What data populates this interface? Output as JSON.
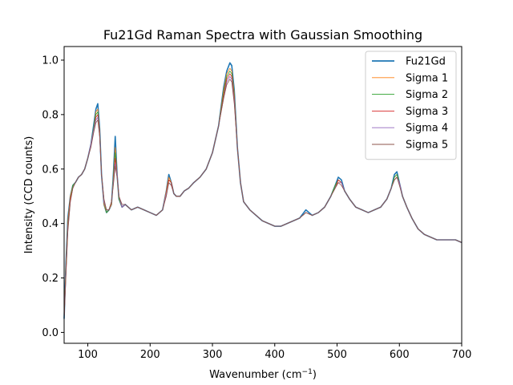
{
  "chart_data": {
    "type": "line",
    "title": "Fu21Gd Raman Spectra with Gaussian Smoothing",
    "xlabel": "Wavenumber (cm",
    "xlabel_sup": "−1",
    "xlabel_end": ")",
    "ylabel": "Intensity (CCD counts)",
    "xlim": [
      62,
      700
    ],
    "ylim": [
      -0.04,
      1.05
    ],
    "xticks": [
      100,
      200,
      300,
      400,
      500,
      600,
      700
    ],
    "xtick_labels": [
      "100",
      "200",
      "300",
      "400",
      "500",
      "600",
      "700"
    ],
    "yticks": [
      0.0,
      0.2,
      0.4,
      0.6,
      0.8,
      1.0
    ],
    "ytick_labels": [
      "0.0",
      "0.2",
      "0.4",
      "0.6",
      "0.8",
      "1.0"
    ],
    "grid": false,
    "legend_position": "top-right",
    "x": [
      62,
      65,
      68,
      72,
      76,
      80,
      85,
      90,
      95,
      100,
      105,
      110,
      113,
      116,
      119,
      122,
      126,
      130,
      134,
      138,
      141,
      144,
      147,
      150,
      155,
      160,
      170,
      180,
      190,
      200,
      210,
      220,
      226,
      230,
      234,
      238,
      242,
      248,
      255,
      262,
      270,
      280,
      290,
      300,
      310,
      318,
      323,
      328,
      331,
      335,
      340,
      345,
      350,
      360,
      370,
      380,
      390,
      400,
      410,
      420,
      430,
      440,
      450,
      460,
      470,
      480,
      490,
      497,
      502,
      507,
      512,
      520,
      530,
      540,
      550,
      560,
      570,
      580,
      587,
      592,
      596,
      600,
      605,
      612,
      620,
      630,
      640,
      650,
      660,
      670,
      680,
      690,
      700
    ],
    "series": [
      {
        "name": "Fu21Gd",
        "color": "#1f77b4",
        "values": [
          0.05,
          0.26,
          0.42,
          0.5,
          0.54,
          0.55,
          0.57,
          0.58,
          0.6,
          0.64,
          0.69,
          0.77,
          0.82,
          0.84,
          0.75,
          0.58,
          0.47,
          0.44,
          0.45,
          0.47,
          0.58,
          0.72,
          0.58,
          0.49,
          0.46,
          0.47,
          0.45,
          0.46,
          0.45,
          0.44,
          0.43,
          0.45,
          0.52,
          0.58,
          0.55,
          0.51,
          0.5,
          0.5,
          0.52,
          0.53,
          0.55,
          0.57,
          0.6,
          0.66,
          0.76,
          0.9,
          0.96,
          0.99,
          0.98,
          0.89,
          0.68,
          0.55,
          0.48,
          0.45,
          0.43,
          0.41,
          0.4,
          0.39,
          0.39,
          0.4,
          0.41,
          0.42,
          0.45,
          0.43,
          0.44,
          0.46,
          0.5,
          0.54,
          0.57,
          0.56,
          0.52,
          0.49,
          0.46,
          0.45,
          0.44,
          0.45,
          0.46,
          0.49,
          0.53,
          0.58,
          0.59,
          0.55,
          0.5,
          0.46,
          0.42,
          0.38,
          0.36,
          0.35,
          0.34,
          0.34,
          0.34,
          0.34,
          0.33
        ]
      },
      {
        "name": "Sigma 1",
        "color": "#ff7f0e",
        "values": [
          0.05,
          0.25,
          0.41,
          0.5,
          0.54,
          0.55,
          0.57,
          0.58,
          0.6,
          0.64,
          0.69,
          0.76,
          0.81,
          0.82,
          0.74,
          0.58,
          0.47,
          0.44,
          0.45,
          0.47,
          0.57,
          0.68,
          0.58,
          0.49,
          0.46,
          0.47,
          0.45,
          0.46,
          0.45,
          0.44,
          0.43,
          0.45,
          0.52,
          0.57,
          0.55,
          0.51,
          0.5,
          0.5,
          0.52,
          0.53,
          0.55,
          0.57,
          0.6,
          0.66,
          0.76,
          0.89,
          0.95,
          0.97,
          0.96,
          0.88,
          0.68,
          0.55,
          0.48,
          0.45,
          0.43,
          0.41,
          0.4,
          0.39,
          0.39,
          0.4,
          0.41,
          0.42,
          0.44,
          0.43,
          0.44,
          0.46,
          0.5,
          0.54,
          0.56,
          0.55,
          0.52,
          0.49,
          0.46,
          0.45,
          0.44,
          0.45,
          0.46,
          0.49,
          0.53,
          0.57,
          0.58,
          0.55,
          0.5,
          0.46,
          0.42,
          0.38,
          0.36,
          0.35,
          0.34,
          0.34,
          0.34,
          0.34,
          0.33
        ]
      },
      {
        "name": "Sigma 2",
        "color": "#2ca02c",
        "values": [
          0.05,
          0.24,
          0.4,
          0.49,
          0.54,
          0.55,
          0.57,
          0.58,
          0.6,
          0.64,
          0.69,
          0.76,
          0.8,
          0.81,
          0.73,
          0.58,
          0.48,
          0.44,
          0.45,
          0.48,
          0.56,
          0.66,
          0.58,
          0.49,
          0.46,
          0.47,
          0.45,
          0.46,
          0.45,
          0.44,
          0.43,
          0.45,
          0.51,
          0.56,
          0.55,
          0.51,
          0.5,
          0.5,
          0.52,
          0.53,
          0.55,
          0.57,
          0.6,
          0.66,
          0.76,
          0.88,
          0.94,
          0.96,
          0.95,
          0.87,
          0.68,
          0.55,
          0.48,
          0.45,
          0.43,
          0.41,
          0.4,
          0.39,
          0.39,
          0.4,
          0.41,
          0.42,
          0.44,
          0.43,
          0.44,
          0.46,
          0.5,
          0.54,
          0.56,
          0.55,
          0.52,
          0.49,
          0.46,
          0.45,
          0.44,
          0.45,
          0.46,
          0.49,
          0.53,
          0.57,
          0.58,
          0.55,
          0.5,
          0.46,
          0.42,
          0.38,
          0.36,
          0.35,
          0.34,
          0.34,
          0.34,
          0.34,
          0.33
        ]
      },
      {
        "name": "Sigma 3",
        "color": "#d62728",
        "values": [
          0.05,
          0.23,
          0.39,
          0.49,
          0.53,
          0.55,
          0.57,
          0.58,
          0.6,
          0.64,
          0.69,
          0.75,
          0.79,
          0.8,
          0.73,
          0.58,
          0.48,
          0.45,
          0.45,
          0.48,
          0.55,
          0.64,
          0.58,
          0.5,
          0.46,
          0.47,
          0.45,
          0.46,
          0.45,
          0.44,
          0.43,
          0.45,
          0.51,
          0.56,
          0.55,
          0.51,
          0.5,
          0.5,
          0.52,
          0.53,
          0.55,
          0.57,
          0.6,
          0.66,
          0.76,
          0.87,
          0.93,
          0.95,
          0.94,
          0.86,
          0.68,
          0.55,
          0.48,
          0.45,
          0.43,
          0.41,
          0.4,
          0.39,
          0.39,
          0.4,
          0.41,
          0.42,
          0.44,
          0.43,
          0.44,
          0.46,
          0.5,
          0.53,
          0.56,
          0.55,
          0.52,
          0.49,
          0.46,
          0.45,
          0.44,
          0.45,
          0.46,
          0.49,
          0.53,
          0.56,
          0.57,
          0.55,
          0.5,
          0.46,
          0.42,
          0.38,
          0.36,
          0.35,
          0.34,
          0.34,
          0.34,
          0.34,
          0.33
        ]
      },
      {
        "name": "Sigma 4",
        "color": "#9467bd",
        "values": [
          0.05,
          0.22,
          0.38,
          0.48,
          0.53,
          0.55,
          0.57,
          0.58,
          0.6,
          0.64,
          0.69,
          0.75,
          0.78,
          0.79,
          0.72,
          0.58,
          0.48,
          0.45,
          0.45,
          0.48,
          0.55,
          0.62,
          0.58,
          0.5,
          0.46,
          0.47,
          0.45,
          0.46,
          0.45,
          0.44,
          0.43,
          0.45,
          0.51,
          0.55,
          0.54,
          0.51,
          0.5,
          0.5,
          0.52,
          0.53,
          0.55,
          0.57,
          0.6,
          0.66,
          0.76,
          0.86,
          0.92,
          0.94,
          0.93,
          0.85,
          0.68,
          0.55,
          0.48,
          0.45,
          0.43,
          0.41,
          0.4,
          0.39,
          0.39,
          0.4,
          0.41,
          0.42,
          0.44,
          0.43,
          0.44,
          0.46,
          0.5,
          0.53,
          0.55,
          0.55,
          0.52,
          0.49,
          0.46,
          0.45,
          0.44,
          0.45,
          0.46,
          0.49,
          0.53,
          0.56,
          0.57,
          0.55,
          0.5,
          0.46,
          0.42,
          0.38,
          0.36,
          0.35,
          0.34,
          0.34,
          0.34,
          0.34,
          0.33
        ]
      },
      {
        "name": "Sigma 5",
        "color": "#8c564b",
        "values": [
          0.05,
          0.21,
          0.37,
          0.48,
          0.53,
          0.55,
          0.57,
          0.58,
          0.6,
          0.64,
          0.68,
          0.74,
          0.77,
          0.78,
          0.72,
          0.58,
          0.49,
          0.45,
          0.45,
          0.48,
          0.54,
          0.61,
          0.57,
          0.5,
          0.47,
          0.47,
          0.45,
          0.46,
          0.45,
          0.44,
          0.43,
          0.45,
          0.5,
          0.55,
          0.54,
          0.51,
          0.5,
          0.5,
          0.52,
          0.53,
          0.55,
          0.57,
          0.6,
          0.66,
          0.76,
          0.86,
          0.91,
          0.93,
          0.92,
          0.84,
          0.68,
          0.55,
          0.48,
          0.45,
          0.43,
          0.41,
          0.4,
          0.39,
          0.39,
          0.4,
          0.41,
          0.42,
          0.44,
          0.43,
          0.44,
          0.46,
          0.5,
          0.53,
          0.55,
          0.54,
          0.52,
          0.49,
          0.46,
          0.45,
          0.44,
          0.45,
          0.46,
          0.49,
          0.53,
          0.56,
          0.57,
          0.54,
          0.5,
          0.46,
          0.42,
          0.38,
          0.36,
          0.35,
          0.34,
          0.34,
          0.34,
          0.34,
          0.33
        ]
      }
    ]
  }
}
